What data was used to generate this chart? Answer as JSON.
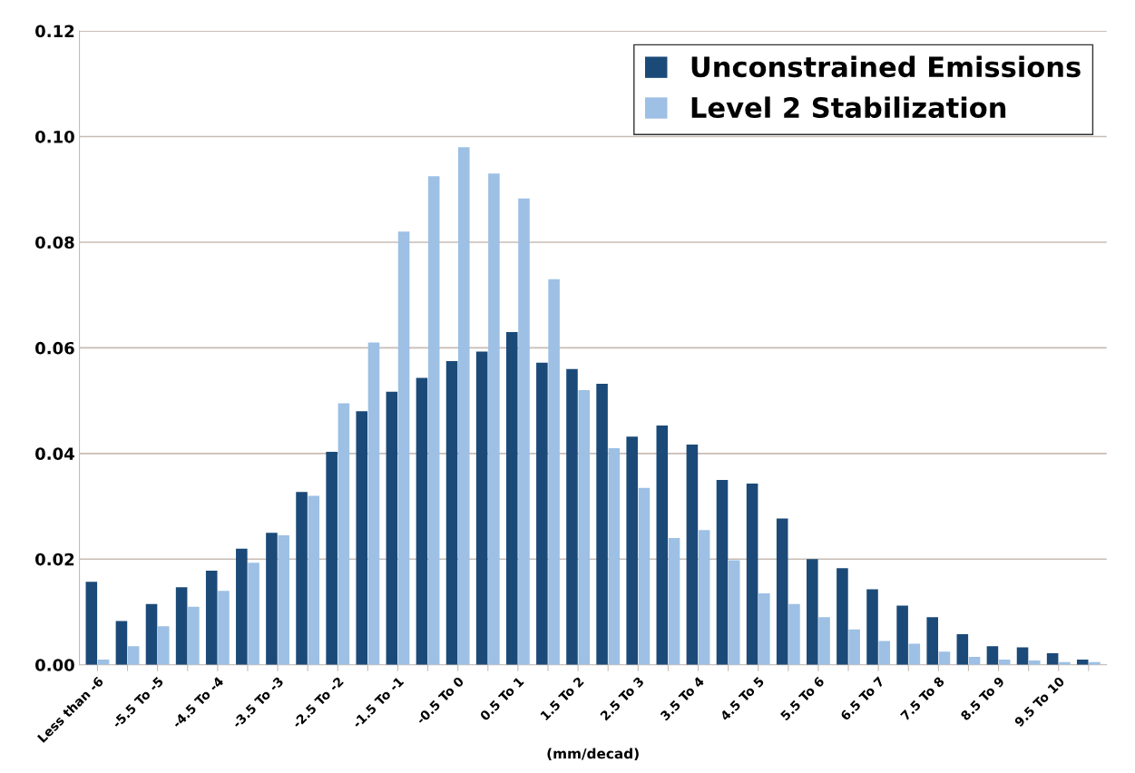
{
  "chart_data": {
    "type": "bar",
    "xlabel": "(mm/decad)",
    "categories": [
      "Less than -6",
      null,
      "-5.5 To -5",
      null,
      "-4.5 To -4",
      null,
      "-3.5 To -3",
      null,
      "-2.5 To -2",
      null,
      "-1.5 To -1",
      null,
      "-0.5 To 0",
      null,
      "0.5 To 1",
      null,
      "1.5 To 2",
      null,
      "2.5 To 3",
      null,
      "3.5 To 4",
      null,
      "4.5 To 5",
      null,
      "5.5 To 6",
      null,
      "6.5 To 7",
      null,
      "7.5 To 8",
      null,
      "8.5 To 9",
      null,
      "9.5 To 10",
      null
    ],
    "series": [
      {
        "name": "Unconstrained Emissions",
        "color": "#1b4a78",
        "values": [
          0.0157,
          0.0083,
          0.0115,
          0.0147,
          0.0178,
          0.022,
          0.025,
          0.0327,
          0.0403,
          0.048,
          0.0517,
          0.0543,
          0.0575,
          0.0593,
          0.063,
          0.0572,
          0.056,
          0.0532,
          0.0432,
          0.0453,
          0.0417,
          0.035,
          0.0343,
          0.0277,
          0.02,
          0.0183,
          0.0143,
          0.0112,
          0.009,
          0.0058,
          0.0035,
          0.0033,
          0.0022,
          0.001
        ]
      },
      {
        "name": "Level 2 Stabilization",
        "color": "#9dc0e4",
        "values": [
          0.001,
          0.0035,
          0.0073,
          0.011,
          0.014,
          0.0193,
          0.0245,
          0.032,
          0.0495,
          0.061,
          0.082,
          0.0925,
          0.098,
          0.093,
          0.0883,
          0.073,
          0.052,
          0.041,
          0.0335,
          0.024,
          0.0255,
          0.0198,
          0.0135,
          0.0115,
          0.009,
          0.0067,
          0.0045,
          0.004,
          0.0025,
          0.0015,
          0.001,
          0.0008,
          0.0005,
          0.0005
        ]
      }
    ],
    "ylim": [
      0,
      0.12
    ],
    "yticks": [
      {
        "value": 0,
        "label": "0.00"
      },
      {
        "value": 0.02,
        "label": "0.02"
      },
      {
        "value": 0.04,
        "label": "0.04"
      },
      {
        "value": 0.06,
        "label": "0.06"
      },
      {
        "value": 0.08,
        "label": "0.08"
      },
      {
        "value": 0.1,
        "label": "0.10"
      },
      {
        "value": 0.12,
        "label": "0.12"
      }
    ],
    "grid": "y",
    "legend": "top right"
  }
}
